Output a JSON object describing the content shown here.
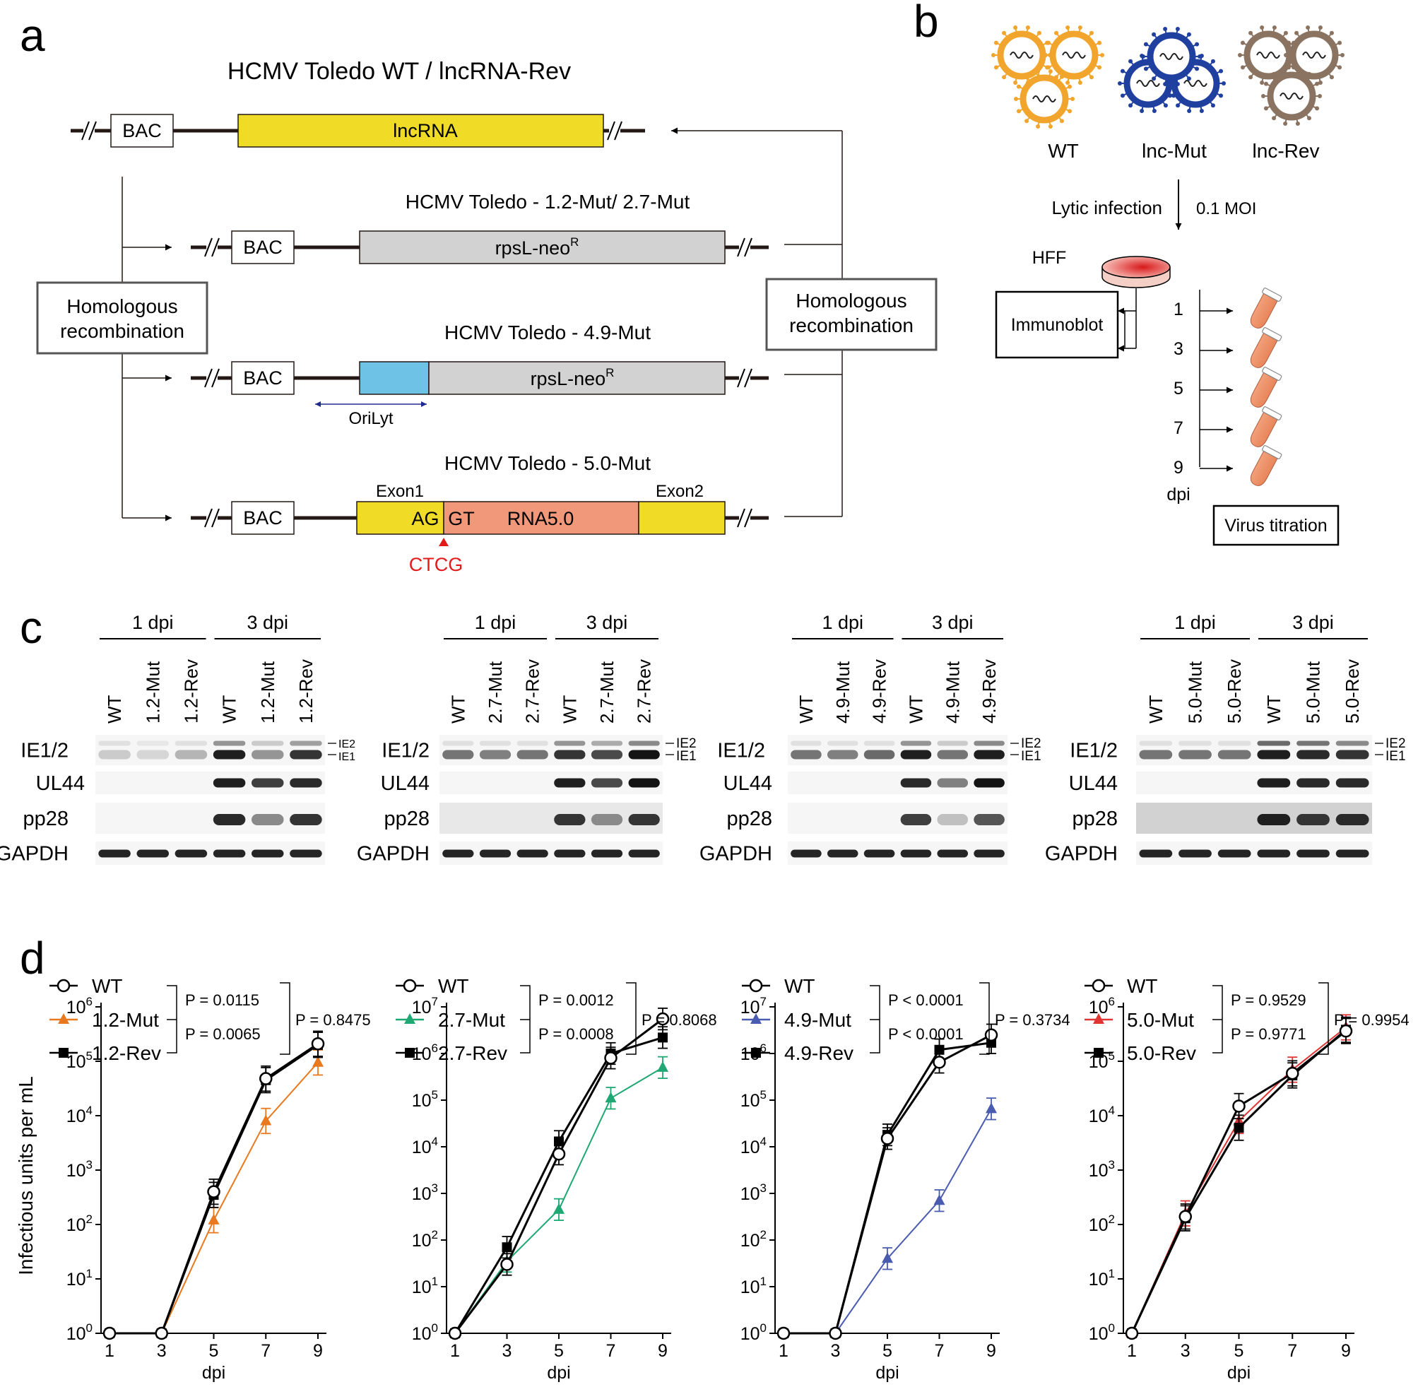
{
  "panels": {
    "a": "a",
    "b": "b",
    "c": "c",
    "d": "d"
  },
  "panel_a": {
    "title": "HCMV Toledo WT / lncRNA-Rev",
    "wt": {
      "bac": "BAC",
      "region": "lncRNA"
    },
    "m12": {
      "title": "HCMV Toledo - 1.2-Mut/ 2.7-Mut",
      "bac": "BAC",
      "region": "rpsL-neo",
      "sup": "R"
    },
    "m49": {
      "title": "HCMV Toledo - 4.9-Mut",
      "bac": "BAC",
      "region": "rpsL-neo",
      "sup": "R",
      "orilyt": "OriLyt"
    },
    "m50": {
      "title": "HCMV Toledo - 5.0-Mut",
      "bac": "BAC",
      "exon1": "Exon1",
      "exon2": "Exon2",
      "ag": "AG",
      "gt": "GT",
      "rna": "RNA5.0",
      "ctcg": "CTCG"
    },
    "hr_left": [
      "Homologous",
      "recombination"
    ],
    "hr_right": [
      "Homologous",
      "recombination"
    ]
  },
  "panel_b": {
    "viruses": [
      "WT",
      "lnc-Mut",
      "lnc-Rev"
    ],
    "lytic": "Lytic infection",
    "moi": "0.1 MOI",
    "cells": "HFF",
    "immunoblot": "Immunoblot",
    "days": [
      "1",
      "3",
      "5",
      "7",
      "9"
    ],
    "dpi": "dpi",
    "titration": "Virus titration",
    "colors": {
      "wt": "#f2a52c",
      "mut": "#2040a0",
      "rev": "#8a7360"
    }
  },
  "panel_c": {
    "blots": [
      {
        "g1": "1 dpi",
        "g2": "3 dpi",
        "lanes": [
          "WT",
          "1.2-Mut",
          "1.2-Rev",
          "WT",
          "1.2-Mut",
          "1.2-Rev"
        ],
        "rows": [
          "IE1/2",
          "UL44",
          "pp28",
          "GAPDH"
        ],
        "ie2": "IE2",
        "ie1": "IE1"
      },
      {
        "g1": "1 dpi",
        "g2": "3 dpi",
        "lanes": [
          "WT",
          "2.7-Mut",
          "2.7-Rev",
          "WT",
          "2.7-Mut",
          "2.7-Rev"
        ],
        "rows": [
          "IE1/2",
          "UL44",
          "pp28",
          "GAPDH"
        ],
        "ie2": "IE2",
        "ie1": "IE1"
      },
      {
        "g1": "1 dpi",
        "g2": "3 dpi",
        "lanes": [
          "WT",
          "4.9-Mut",
          "4.9-Rev",
          "WT",
          "4.9-Mut",
          "4.9-Rev"
        ],
        "rows": [
          "IE1/2",
          "UL44",
          "pp28",
          "GAPDH"
        ],
        "ie2": "IE2",
        "ie1": "IE1"
      },
      {
        "g1": "1 dpi",
        "g2": "3 dpi",
        "lanes": [
          "WT",
          "5.0-Mut",
          "5.0-Rev",
          "WT",
          "5.0-Mut",
          "5.0-Rev"
        ],
        "rows": [
          "IE1/2",
          "UL44",
          "pp28",
          "GAPDH"
        ],
        "ie2": "IE2",
        "ie1": "IE1"
      }
    ]
  },
  "chart_data": [
    {
      "type": "line",
      "x": [
        1,
        3,
        5,
        7,
        9
      ],
      "xlabel": "dpi",
      "ylabel": "Infectious units per mL",
      "ylim": [
        1,
        1000000
      ],
      "yscale": "log",
      "series": [
        {
          "name": "WT",
          "values": [
            1,
            1,
            400,
            48000,
            210000
          ],
          "marker": "open-circle",
          "color": "#000000"
        },
        {
          "name": "1.2-Mut",
          "values": [
            1,
            1,
            120,
            8000,
            95000
          ],
          "marker": "triangle",
          "color": "#e8791e"
        },
        {
          "name": "1.2-Rev",
          "values": [
            1,
            1,
            350,
            45000,
            200000
          ],
          "marker": "square",
          "color": "#000000"
        }
      ],
      "pvalues": [
        "P = 0.0115",
        "P = 0.0065",
        "P = 0.8475"
      ]
    },
    {
      "type": "line",
      "x": [
        1,
        3,
        5,
        7,
        9
      ],
      "xlabel": "dpi",
      "ylim": [
        1,
        10000000
      ],
      "yscale": "log",
      "series": [
        {
          "name": "WT",
          "values": [
            1,
            30,
            7000,
            800000,
            5500000
          ],
          "marker": "open-circle",
          "color": "#000000"
        },
        {
          "name": "2.7-Mut",
          "values": [
            1,
            35,
            450,
            110000,
            500000
          ],
          "marker": "triangle",
          "color": "#1fa873"
        },
        {
          "name": "2.7-Rev",
          "values": [
            1,
            70,
            13000,
            1000000,
            2200000
          ],
          "marker": "square",
          "color": "#000000"
        }
      ],
      "pvalues": [
        "P = 0.0012",
        "P = 0.0008",
        "P = 0.8068"
      ]
    },
    {
      "type": "line",
      "x": [
        1,
        3,
        5,
        7,
        9
      ],
      "xlabel": "dpi",
      "ylim": [
        1,
        10000000
      ],
      "yscale": "log",
      "series": [
        {
          "name": "WT",
          "values": [
            1,
            1,
            15000,
            650000,
            2500000
          ],
          "marker": "open-circle",
          "color": "#000000"
        },
        {
          "name": "4.9-Mut",
          "values": [
            1,
            1,
            40,
            700,
            65000
          ],
          "marker": "triangle",
          "color": "#4a5cb0"
        },
        {
          "name": "4.9-Rev",
          "values": [
            1,
            1,
            18000,
            1200000,
            1700000
          ],
          "marker": "square",
          "color": "#000000"
        }
      ],
      "pvalues": [
        "P < 0.0001",
        "P < 0.0001",
        "P = 0.3734"
      ]
    },
    {
      "type": "line",
      "x": [
        1,
        3,
        5,
        7,
        9
      ],
      "xlabel": "dpi",
      "ylim": [
        1,
        1000000
      ],
      "yscale": "log",
      "series": [
        {
          "name": "WT",
          "values": [
            1,
            140,
            15000,
            60000,
            360000
          ],
          "marker": "open-circle",
          "color": "#000000"
        },
        {
          "name": "5.0-Mut",
          "values": [
            1,
            160,
            8000,
            70000,
            420000
          ],
          "marker": "triangle",
          "color": "#e03535"
        },
        {
          "name": "5.0-Rev",
          "values": [
            1,
            130,
            6000,
            55000,
            380000
          ],
          "marker": "square",
          "color": "#000000"
        }
      ],
      "pvalues": [
        "P = 0.9529",
        "P = 0.9771",
        "P = 0.9954"
      ]
    }
  ]
}
